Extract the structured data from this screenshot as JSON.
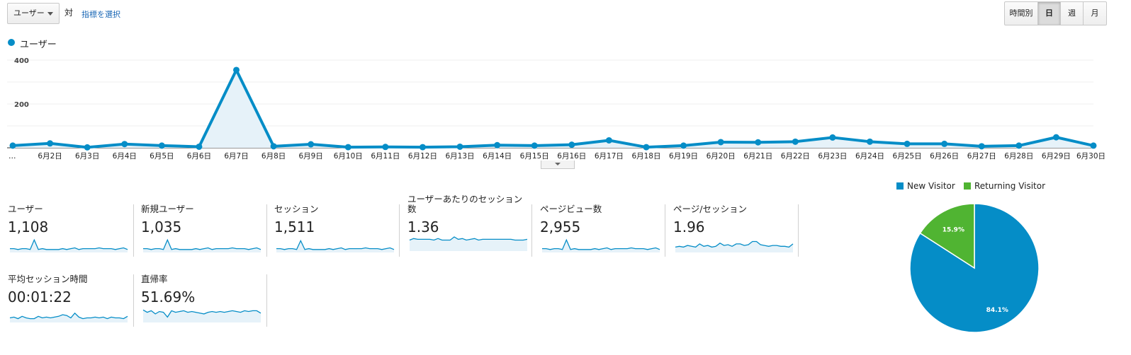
{
  "controls": {
    "metric_select": "ユーザー",
    "vs_label": "対",
    "choose_metric": "指標を選択",
    "periods": [
      {
        "label": "時間別",
        "active": false
      },
      {
        "label": "日",
        "active": true
      },
      {
        "label": "週",
        "active": false
      },
      {
        "label": "月",
        "active": false
      }
    ]
  },
  "chart_legend": {
    "label": "ユーザー",
    "color": "#058dc7"
  },
  "chart_data": [
    {
      "type": "area",
      "series": [
        {
          "name": "ユーザー",
          "values": [
            10,
            20,
            2,
            17,
            10,
            5,
            355,
            7,
            16,
            3,
            4,
            3,
            5,
            12,
            10,
            14,
            34,
            3,
            10,
            26,
            25,
            28,
            47,
            28,
            18,
            18,
            7,
            10,
            48,
            10
          ]
        }
      ],
      "x": [
        "…",
        "6月2日",
        "6月3日",
        "6月4日",
        "6月5日",
        "6月6日",
        "6月7日",
        "6月8日",
        "6月9日",
        "6月10日",
        "6月11日",
        "6月12日",
        "6月13日",
        "6月14日",
        "6月15日",
        "6月16日",
        "6月17日",
        "6月18日",
        "6月19日",
        "6月20日",
        "6月21日",
        "6月22日",
        "6月23日",
        "6月24日",
        "6月25日",
        "6月26日",
        "6月27日",
        "6月28日",
        "6月29日",
        "6月30日"
      ],
      "y_ticks": [
        "400",
        "200"
      ],
      "ylim": [
        0,
        400
      ],
      "grid": true,
      "color": "#058dc7"
    },
    {
      "type": "pie",
      "categories": [
        "New Visitor",
        "Returning Visitor"
      ],
      "values": [
        84.1,
        15.9
      ],
      "labels": [
        "84.1%",
        "15.9%"
      ],
      "colors": [
        "#058dc7",
        "#50b432"
      ],
      "legend": "top"
    }
  ],
  "tiles": [
    {
      "label": "ユーザー",
      "value": "1,108"
    },
    {
      "label": "新規ユーザー",
      "value": "1,035"
    },
    {
      "label": "セッション",
      "value": "1,511"
    },
    {
      "label": "ユーザーあたりのセッション数",
      "value": "1.36"
    },
    {
      "label": "ページビュー数",
      "value": "2,955"
    },
    {
      "label": "ページ/セッション",
      "value": "1.96"
    },
    {
      "label": "平均セッション時間",
      "value": "00:01:22"
    },
    {
      "label": "直帰率",
      "value": "51.69%"
    }
  ]
}
